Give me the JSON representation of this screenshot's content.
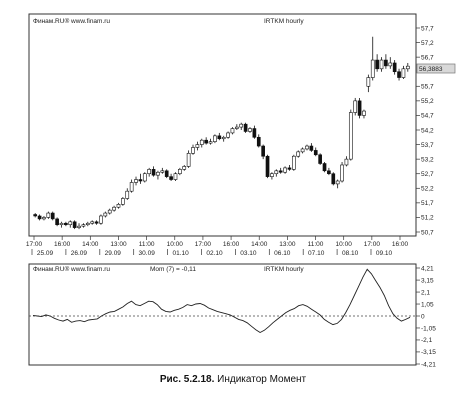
{
  "caption": {
    "fig": "Рис. 5.2.18.",
    "text": "Индикатор Момент"
  },
  "chart_data": [
    {
      "type": "candlestick",
      "source_label": "Финам.RU® www.finam.ru",
      "title": "IRTKM hourly",
      "ylim": [
        50.7,
        57.7
      ],
      "y_ticks": [
        "57,7",
        "57,2",
        "56,7",
        "55,7",
        "55,2",
        "54,7",
        "54,2",
        "53,7",
        "53,2",
        "52,7",
        "52,2",
        "51,7",
        "51,2",
        "50,7"
      ],
      "current_value": "56,3883",
      "x_time_labels": [
        "17:00",
        "16:00",
        "14:00",
        "13:00",
        "11:00",
        "10:00",
        "17:00",
        "16:00",
        "14:00",
        "13:00",
        "11:00",
        "10:00",
        "17:00",
        "16:00"
      ],
      "x_date_labels": [
        "25.09",
        "26.09",
        "29.09",
        "30.09",
        "01.10",
        "02.10",
        "03.10",
        "06.10",
        "07.10",
        "08.10",
        "09.10"
      ],
      "candles": [
        [
          51.3,
          51.35,
          51.2,
          51.25
        ],
        [
          51.25,
          51.3,
          51.1,
          51.15
        ],
        [
          51.15,
          51.25,
          51.1,
          51.2
        ],
        [
          51.2,
          51.4,
          51.15,
          51.35
        ],
        [
          51.35,
          51.4,
          51.1,
          51.15
        ],
        [
          51.15,
          51.2,
          50.9,
          50.95
        ],
        [
          50.95,
          51.05,
          50.85,
          51.0
        ],
        [
          51.0,
          51.05,
          50.9,
          50.95
        ],
        [
          50.95,
          51.1,
          50.85,
          51.05
        ],
        [
          51.05,
          51.1,
          50.8,
          50.85
        ],
        [
          50.85,
          51.0,
          50.8,
          50.9
        ],
        [
          50.9,
          51.0,
          50.85,
          50.95
        ],
        [
          50.95,
          51.05,
          50.9,
          51.0
        ],
        [
          51.0,
          51.1,
          50.95,
          51.05
        ],
        [
          51.05,
          51.1,
          50.95,
          51.0
        ],
        [
          51.0,
          51.3,
          50.95,
          51.25
        ],
        [
          51.25,
          51.4,
          51.2,
          51.35
        ],
        [
          51.35,
          51.5,
          51.3,
          51.45
        ],
        [
          51.45,
          51.6,
          51.4,
          51.55
        ],
        [
          51.55,
          51.7,
          51.5,
          51.65
        ],
        [
          51.65,
          51.9,
          51.6,
          51.85
        ],
        [
          51.85,
          52.2,
          51.8,
          52.1
        ],
        [
          52.1,
          52.5,
          52.05,
          52.4
        ],
        [
          52.4,
          52.6,
          52.3,
          52.5
        ],
        [
          52.5,
          52.7,
          52.35,
          52.45
        ],
        [
          52.45,
          52.75,
          52.4,
          52.7
        ],
        [
          52.7,
          52.9,
          52.6,
          52.85
        ],
        [
          52.85,
          52.95,
          52.6,
          52.65
        ],
        [
          52.65,
          52.8,
          52.5,
          52.75
        ],
        [
          52.75,
          52.9,
          52.7,
          52.8
        ],
        [
          52.8,
          52.85,
          52.55,
          52.6
        ],
        [
          52.6,
          52.7,
          52.45,
          52.5
        ],
        [
          52.5,
          52.75,
          52.45,
          52.7
        ],
        [
          52.7,
          52.9,
          52.65,
          52.85
        ],
        [
          52.85,
          53.0,
          52.8,
          52.95
        ],
        [
          52.95,
          53.5,
          52.9,
          53.4
        ],
        [
          53.4,
          53.7,
          53.35,
          53.6
        ],
        [
          53.6,
          53.8,
          53.5,
          53.7
        ],
        [
          53.7,
          53.9,
          53.6,
          53.85
        ],
        [
          53.85,
          53.95,
          53.7,
          53.75
        ],
        [
          53.75,
          53.9,
          53.7,
          53.8
        ],
        [
          53.8,
          54.05,
          53.75,
          54.0
        ],
        [
          54.0,
          54.1,
          53.85,
          53.9
        ],
        [
          53.9,
          54.0,
          53.8,
          53.95
        ],
        [
          53.95,
          54.15,
          53.9,
          54.1
        ],
        [
          54.1,
          54.3,
          54.05,
          54.25
        ],
        [
          54.25,
          54.4,
          54.2,
          54.3
        ],
        [
          54.3,
          54.45,
          54.2,
          54.4
        ],
        [
          54.4,
          54.45,
          54.1,
          54.15
        ],
        [
          54.15,
          54.3,
          54.1,
          54.25
        ],
        [
          54.25,
          54.35,
          53.9,
          53.95
        ],
        [
          53.95,
          54.05,
          53.6,
          53.65
        ],
        [
          53.65,
          53.7,
          53.2,
          53.3
        ],
        [
          53.3,
          53.35,
          52.55,
          52.6
        ],
        [
          52.6,
          52.75,
          52.5,
          52.7
        ],
        [
          52.7,
          52.85,
          52.6,
          52.8
        ],
        [
          52.8,
          52.9,
          52.7,
          52.75
        ],
        [
          52.75,
          52.95,
          52.7,
          52.9
        ],
        [
          52.9,
          53.0,
          52.8,
          52.85
        ],
        [
          52.85,
          53.35,
          52.8,
          53.3
        ],
        [
          53.3,
          53.5,
          53.25,
          53.45
        ],
        [
          53.45,
          53.6,
          53.4,
          53.55
        ],
        [
          53.55,
          53.7,
          53.5,
          53.65
        ],
        [
          53.65,
          53.75,
          53.45,
          53.5
        ],
        [
          53.5,
          53.6,
          53.3,
          53.35
        ],
        [
          53.35,
          53.4,
          53.0,
          53.05
        ],
        [
          53.05,
          53.1,
          52.75,
          52.8
        ],
        [
          52.8,
          52.9,
          52.65,
          52.7
        ],
        [
          52.7,
          52.75,
          52.3,
          52.35
        ],
        [
          52.35,
          52.5,
          52.2,
          52.45
        ],
        [
          52.45,
          53.1,
          52.4,
          53.0
        ],
        [
          53.0,
          53.3,
          52.95,
          53.2
        ],
        [
          53.2,
          54.9,
          53.15,
          54.8
        ],
        [
          54.8,
          55.3,
          54.7,
          55.2
        ],
        [
          55.2,
          55.3,
          54.6,
          54.7
        ],
        [
          54.7,
          54.9,
          54.6,
          54.85
        ],
        [
          55.7,
          56.1,
          55.5,
          56.0
        ],
        [
          56.0,
          57.4,
          55.9,
          56.6
        ],
        [
          56.6,
          56.8,
          56.2,
          56.3
        ],
        [
          56.3,
          56.7,
          56.2,
          56.6
        ],
        [
          56.6,
          56.8,
          56.3,
          56.4
        ],
        [
          56.4,
          56.7,
          56.3,
          56.5
        ],
        [
          56.5,
          56.6,
          56.1,
          56.2
        ],
        [
          56.2,
          56.3,
          55.9,
          56.0
        ],
        [
          56.0,
          56.4,
          55.95,
          56.3
        ],
        [
          56.3,
          56.5,
          56.2,
          56.39
        ]
      ]
    },
    {
      "type": "line",
      "source_label": "Финам.RU® www.finam.ru",
      "legend_label": "Mom (7) = -0,11",
      "title": "IRTKM hourly",
      "ylim": [
        -4.21,
        4.21
      ],
      "y_ticks": [
        "4,21",
        "3,15",
        "2,1",
        "1,05",
        "0",
        "-1,05",
        "-2,1",
        "-3,15",
        "-4,21"
      ],
      "zero_line": "dashed",
      "values": [
        0.05,
        0.0,
        -0.05,
        0.1,
        0.0,
        -0.2,
        -0.35,
        -0.45,
        -0.3,
        -0.55,
        -0.45,
        -0.4,
        -0.5,
        -0.35,
        -0.3,
        -0.25,
        0.0,
        0.2,
        0.35,
        0.4,
        0.6,
        0.8,
        1.1,
        1.3,
        1.0,
        0.9,
        1.1,
        1.3,
        1.25,
        1.0,
        0.6,
        0.4,
        0.35,
        0.5,
        0.6,
        0.75,
        1.0,
        0.9,
        1.05,
        1.1,
        0.95,
        0.7,
        0.55,
        0.4,
        0.3,
        0.2,
        0.1,
        -0.1,
        -0.3,
        -0.4,
        -0.6,
        -0.9,
        -1.2,
        -1.45,
        -1.25,
        -0.95,
        -0.6,
        -0.3,
        0.0,
        0.3,
        0.5,
        0.65,
        0.9,
        1.0,
        0.85,
        0.6,
        0.35,
        0.1,
        -0.3,
        -0.55,
        -0.75,
        -0.65,
        -0.3,
        0.3,
        1.0,
        1.8,
        2.6,
        3.4,
        4.1,
        3.7,
        3.1,
        2.5,
        1.8,
        0.9,
        0.2,
        -0.2,
        -0.45,
        -0.3,
        -0.11
      ]
    }
  ]
}
